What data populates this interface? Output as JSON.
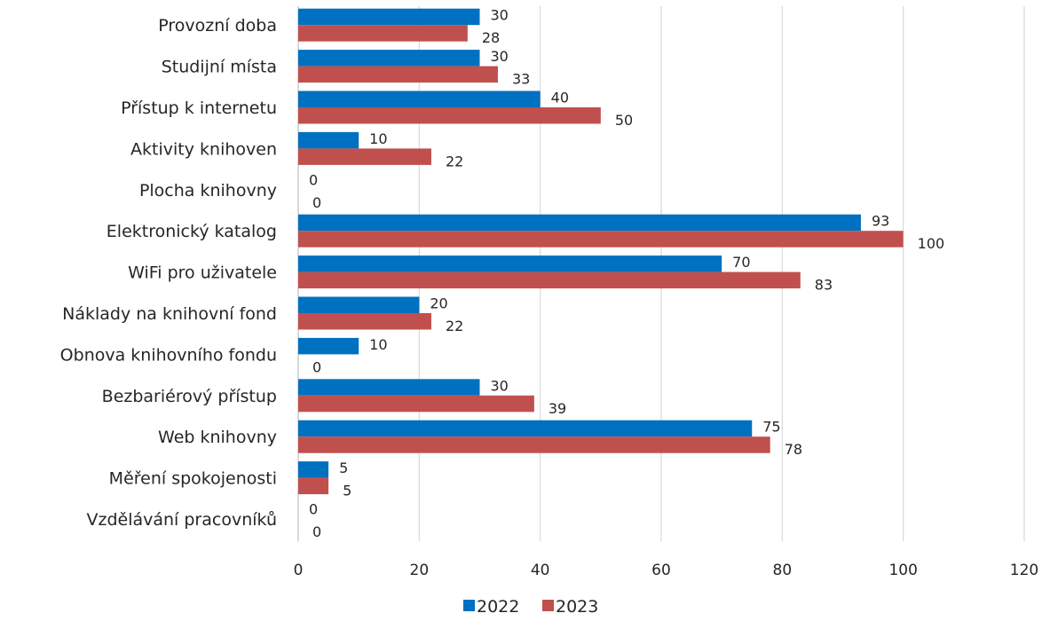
{
  "chart_data": {
    "type": "bar",
    "orientation": "horizontal",
    "title": "",
    "xlabel": "",
    "ylabel": "",
    "categories": [
      "Provozní doba",
      "Studijní místa",
      "Přístup k internetu",
      "Aktivity knihoven",
      "Plocha knihovny",
      "Elektronický katalog",
      "WiFi pro uživatele",
      "Náklady na knihovní fond",
      "Obnova knihovního fondu",
      "Bezbariérový přístup",
      "Web knihovny",
      "Měření spokojenosti",
      "Vzdělávání pracovníků"
    ],
    "series": [
      {
        "name": "2022",
        "color": "#0070c0",
        "values": [
          30,
          30,
          40,
          10,
          0,
          93,
          70,
          20,
          10,
          30,
          75,
          5,
          0
        ]
      },
      {
        "name": "2023",
        "color": "#c0504d",
        "values": [
          28,
          33,
          50,
          22,
          0,
          100,
          83,
          22,
          0,
          39,
          78,
          5,
          0
        ]
      }
    ],
    "xlim": [
      0,
      120
    ],
    "xticks": [
      0,
      20,
      40,
      60,
      80,
      100,
      120
    ],
    "grid": true,
    "legend": "bottom"
  }
}
